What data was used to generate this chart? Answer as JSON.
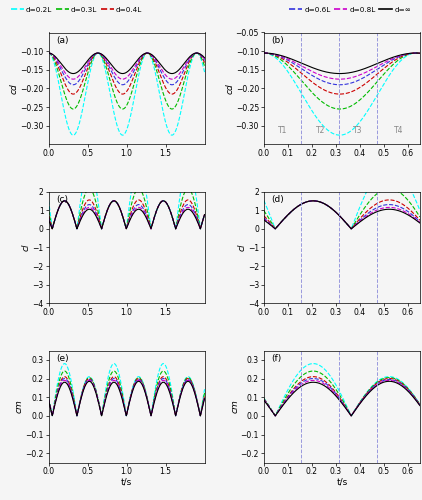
{
  "colors": {
    "c02": "#00FFFF",
    "c03": "#00BB00",
    "c04": "#CC0000",
    "c06": "#3333DD",
    "c08": "#CC00CC",
    "cinf": "#000000"
  },
  "subplots": [
    {
      "label": "(a)",
      "ylabel": "cd",
      "xlim": [
        0,
        2
      ],
      "ylim": [
        -0.35,
        -0.05
      ],
      "yticks": [
        -0.3,
        -0.25,
        -0.2,
        -0.15,
        -0.1
      ],
      "xticks": [
        0,
        0.5,
        1.0,
        1.5
      ],
      "vlines": []
    },
    {
      "label": "(b)",
      "ylabel": "cd",
      "xlim": [
        0,
        0.65
      ],
      "ylim": [
        -0.35,
        -0.05
      ],
      "yticks": [
        -0.3,
        -0.25,
        -0.2,
        -0.15,
        -0.1,
        -0.05
      ],
      "xticks": [
        0,
        0.1,
        0.2,
        0.3,
        0.4,
        0.5,
        0.6
      ],
      "vlines": [
        0.155,
        0.315,
        0.47
      ],
      "period_labels": [
        "T1",
        "T2",
        "T3",
        "T4"
      ]
    },
    {
      "label": "(c)",
      "ylabel": "cl",
      "xlim": [
        0,
        2
      ],
      "ylim": [
        -4,
        2
      ],
      "yticks": [
        -4,
        -3,
        -2,
        -1,
        0,
        1,
        2
      ],
      "xticks": [
        0,
        0.5,
        1.0,
        1.5
      ],
      "vlines": []
    },
    {
      "label": "(d)",
      "ylabel": "cl",
      "xlim": [
        0,
        0.65
      ],
      "ylim": [
        -4,
        2
      ],
      "yticks": [
        -4,
        -3,
        -2,
        -1,
        0,
        1,
        2
      ],
      "xticks": [
        0,
        0.1,
        0.2,
        0.3,
        0.4,
        0.5,
        0.6
      ],
      "vlines": [
        0.155,
        0.315,
        0.47
      ],
      "period_labels": []
    },
    {
      "label": "(e)",
      "ylabel": "cm",
      "xlim": [
        0,
        2
      ],
      "ylim": [
        -0.25,
        0.35
      ],
      "yticks": [
        -0.2,
        -0.1,
        0.0,
        0.1,
        0.2,
        0.3
      ],
      "xticks": [
        0,
        0.5,
        1.0,
        1.5
      ],
      "xlabel": "t/s",
      "vlines": []
    },
    {
      "label": "(f)",
      "ylabel": "cm",
      "xlim": [
        0,
        0.65
      ],
      "ylim": [
        -0.25,
        0.35
      ],
      "yticks": [
        -0.2,
        -0.1,
        0.0,
        0.1,
        0.2,
        0.3
      ],
      "xticks": [
        0,
        0.1,
        0.2,
        0.3,
        0.4,
        0.5,
        0.6
      ],
      "xlabel": "t/s",
      "vlines": [
        0.155,
        0.315,
        0.47
      ],
      "period_labels": []
    }
  ]
}
